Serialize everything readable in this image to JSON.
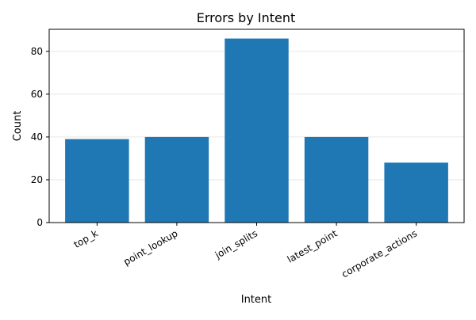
{
  "chart_data": {
    "type": "bar",
    "title": "Errors by Intent",
    "xlabel": "Intent",
    "ylabel": "Count",
    "categories": [
      "top_k",
      "point_lookup",
      "join_splits",
      "latest_point",
      "corporate_actions"
    ],
    "values": [
      39,
      40,
      86,
      40,
      28
    ],
    "ylim": [
      0,
      90.3
    ],
    "yticks": [
      0,
      20,
      40,
      60,
      80
    ],
    "grid": "horizontal",
    "legend": "none",
    "bar_color": "#1f77b4"
  }
}
